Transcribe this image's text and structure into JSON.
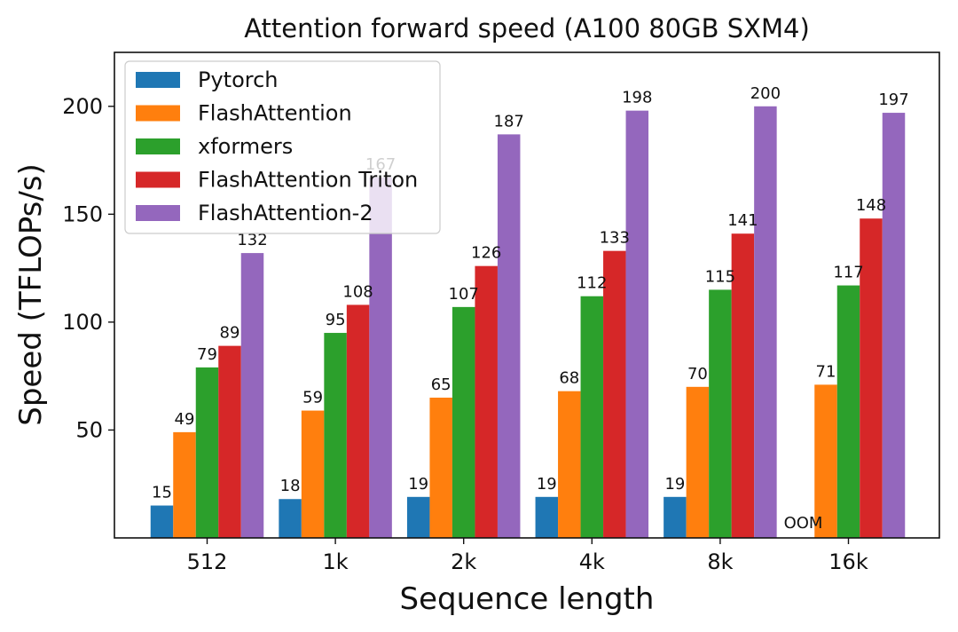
{
  "chart_data": {
    "type": "bar",
    "title": "Attention forward speed (A100 80GB SXM4)",
    "xlabel": "Sequence length",
    "ylabel": "Speed (TFLOPs/s)",
    "categories": [
      "512",
      "1k",
      "2k",
      "4k",
      "8k",
      "16k"
    ],
    "ylim": [
      0,
      225
    ],
    "yticks": [
      50,
      100,
      150,
      200
    ],
    "grid": false,
    "legend_position": "top-left",
    "series": [
      {
        "name": "Pytorch",
        "color": "#1f77b4",
        "values": [
          15,
          18,
          19,
          19,
          19,
          null
        ],
        "labels": [
          "15",
          "18",
          "19",
          "19",
          "19",
          "OOM"
        ]
      },
      {
        "name": "FlashAttention",
        "color": "#ff7f0e",
        "values": [
          49,
          59,
          65,
          68,
          70,
          71
        ],
        "labels": [
          "49",
          "59",
          "65",
          "68",
          "70",
          "71"
        ]
      },
      {
        "name": "xformers",
        "color": "#2ca02c",
        "values": [
          79,
          95,
          107,
          112,
          115,
          117
        ],
        "labels": [
          "79",
          "95",
          "107",
          "112",
          "115",
          "117"
        ]
      },
      {
        "name": "FlashAttention Triton",
        "color": "#d62728",
        "values": [
          89,
          108,
          126,
          133,
          141,
          148
        ],
        "labels": [
          "89",
          "108",
          "126",
          "133",
          "141",
          "148"
        ]
      },
      {
        "name": "FlashAttention-2",
        "color": "#9467bd",
        "values": [
          132,
          167,
          187,
          198,
          200,
          197
        ],
        "labels": [
          "132",
          "167",
          "187",
          "198",
          "200",
          "197"
        ]
      }
    ]
  }
}
